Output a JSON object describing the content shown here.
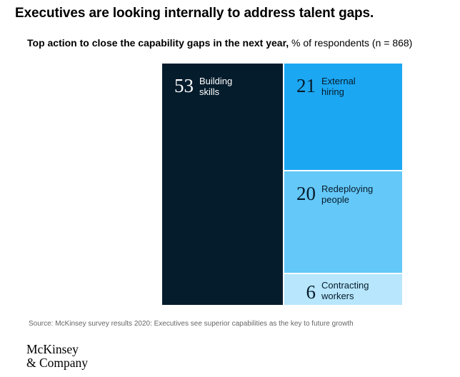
{
  "title": "Executives are looking internally to address talent gaps.",
  "subtitle": {
    "bold": "Top action to close the capability gaps in the next year,",
    "rest": " % of respondents (n = 868)"
  },
  "chart_data": {
    "type": "treemap",
    "unit": "% of respondents",
    "n": 868,
    "tiles": [
      {
        "label": "Building skills",
        "line1": "Building",
        "line2": "skills",
        "value": 53,
        "color": "#051c2c",
        "text_color": "#ffffff"
      },
      {
        "label": "External hiring",
        "line1": "External",
        "line2": "hiring",
        "value": 21,
        "color": "#1ca7f3",
        "text_color": "#051c2c"
      },
      {
        "label": "Redeploying people",
        "line1": "Redeploying",
        "line2": "people",
        "value": 20,
        "color": "#64c8f8",
        "text_color": "#051c2c"
      },
      {
        "label": "Contracting workers",
        "line1": "Contracting",
        "line2": "workers",
        "value": 6,
        "color": "#b8e6fc",
        "text_color": "#051c2c"
      }
    ]
  },
  "source": "Source: McKinsey survey results 2020: Executives see superior capabilities as the key to future growth",
  "logo": {
    "line1": "McKinsey",
    "line2": "& Company"
  }
}
